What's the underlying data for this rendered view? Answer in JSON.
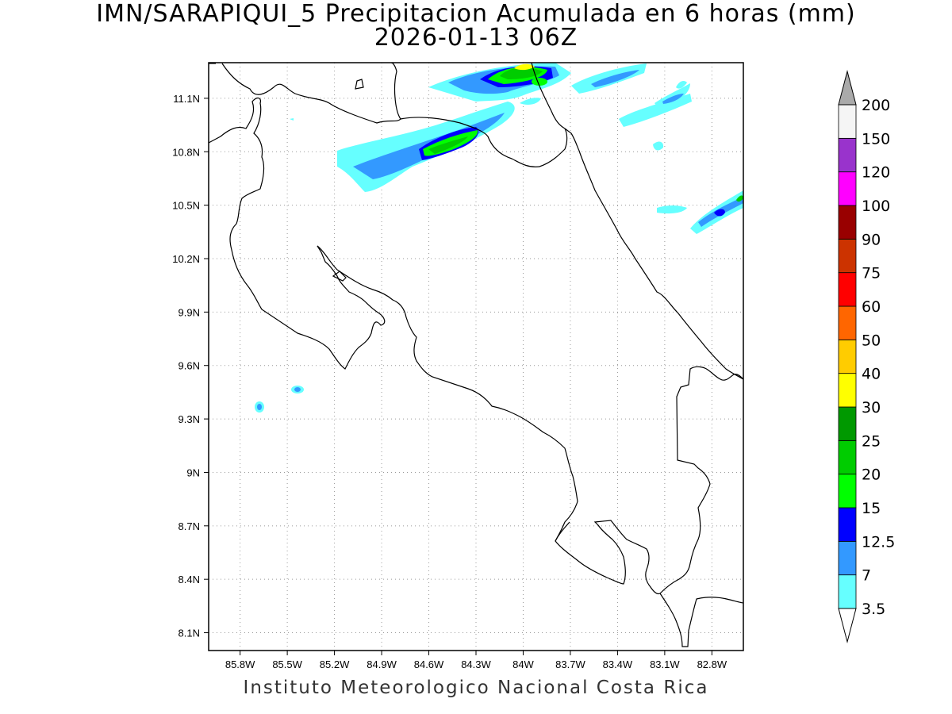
{
  "title": {
    "line1": "IMN/SARAPIQUI_5 Precipitacion Acumulada en 6 horas (mm)",
    "line2": "2026-01-13 06Z"
  },
  "footer": "Instituto Meteorologico Nacional Costa Rica",
  "map": {
    "type": "contour-map",
    "lon_range": [
      -86.0,
      -82.6
    ],
    "lat_range": [
      8.0,
      11.3
    ],
    "x_ticks": [
      {
        "value": -85.8,
        "label": "85.8W"
      },
      {
        "value": -85.5,
        "label": "85.5W"
      },
      {
        "value": -85.2,
        "label": "85.2W"
      },
      {
        "value": -84.9,
        "label": "84.9W"
      },
      {
        "value": -84.6,
        "label": "84.6W"
      },
      {
        "value": -84.3,
        "label": "84.3W"
      },
      {
        "value": -84.0,
        "label": "84W"
      },
      {
        "value": -83.7,
        "label": "83.7W"
      },
      {
        "value": -83.4,
        "label": "83.4W"
      },
      {
        "value": -83.1,
        "label": "83.1W"
      },
      {
        "value": -82.8,
        "label": "82.8W"
      }
    ],
    "y_ticks": [
      {
        "value": 11.1,
        "label": "11.1N"
      },
      {
        "value": 10.8,
        "label": "10.8N"
      },
      {
        "value": 10.5,
        "label": "10.5N"
      },
      {
        "value": 10.2,
        "label": "10.2N"
      },
      {
        "value": 9.9,
        "label": "9.9N"
      },
      {
        "value": 9.6,
        "label": "9.6N"
      },
      {
        "value": 9.3,
        "label": "9.3N"
      },
      {
        "value": 9.0,
        "label": "9N"
      },
      {
        "value": 8.7,
        "label": "8.7N"
      },
      {
        "value": 8.4,
        "label": "8.4N"
      },
      {
        "value": 8.1,
        "label": "8.1N"
      }
    ],
    "grid": true
  },
  "colorbar": {
    "levels": [
      "3.5",
      "7",
      "12.5",
      "15",
      "20",
      "25",
      "30",
      "40",
      "50",
      "60",
      "75",
      "90",
      "100",
      "120",
      "150",
      "200"
    ],
    "colors": [
      "#66ffff",
      "#3399ff",
      "#0000ff",
      "#00ff00",
      "#00cc00",
      "#009900",
      "#ffff00",
      "#ffcc00",
      "#ff6600",
      "#ff0000",
      "#cc3300",
      "#990000",
      "#ff00ff",
      "#9933cc",
      "#f5f5f5"
    ],
    "over_color": "#aaaaaa",
    "under_color": "#ffffff"
  }
}
